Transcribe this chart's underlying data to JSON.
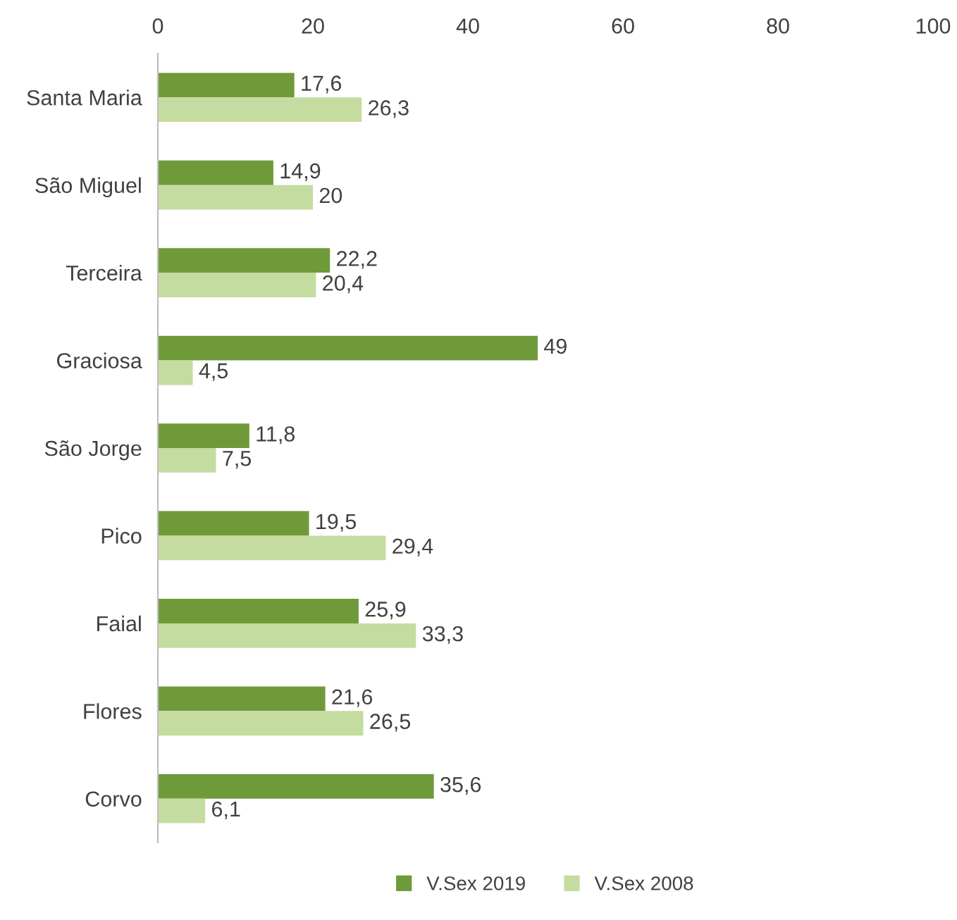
{
  "chart_data": {
    "type": "bar",
    "orientation": "horizontal",
    "categories": [
      "Santa Maria",
      "São Miguel",
      "Terceira",
      "Graciosa",
      "São Jorge",
      "Pico",
      "Faial",
      "Flores",
      "Corvo"
    ],
    "series": [
      {
        "name": "V.Sex 2019",
        "color": "#6f9a3a",
        "values": [
          17.6,
          14.9,
          22.2,
          49,
          11.8,
          19.5,
          25.9,
          21.6,
          35.6
        ],
        "value_labels": [
          "17,6",
          "14,9",
          "22,2",
          "49",
          "11,8",
          "19,5",
          "25,9",
          "21,6",
          "35,6"
        ]
      },
      {
        "name": "V.Sex 2008",
        "color": "#c4dc9f",
        "values": [
          26.3,
          20,
          20.4,
          4.5,
          7.5,
          29.4,
          33.3,
          26.5,
          6.1
        ],
        "value_labels": [
          "26,3",
          "20",
          "20,4",
          "4,5",
          "7,5",
          "29,4",
          "33,3",
          "26,5",
          "6,1"
        ]
      }
    ],
    "xlim": [
      0,
      100
    ],
    "xticks": [
      0,
      20,
      40,
      60,
      80,
      100
    ],
    "grid": false,
    "legend": "bottom"
  }
}
